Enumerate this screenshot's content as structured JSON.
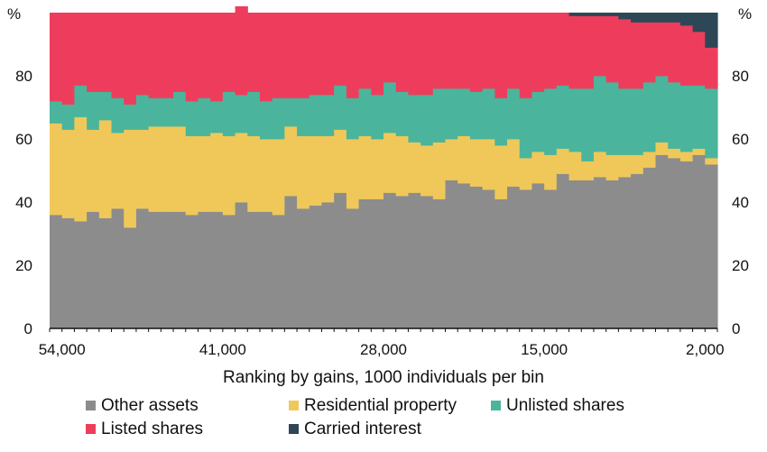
{
  "chart_data": {
    "type": "bar",
    "stacked": true,
    "xlabel": "Ranking by gains, 1000 individuals per bin",
    "ylabel_left": "%",
    "ylabel_right": "%",
    "ylim": [
      0,
      100
    ],
    "yticks": [
      0,
      20,
      40,
      60,
      80
    ],
    "xticks": [
      {
        "x": 54000,
        "label": "54,000"
      },
      {
        "x": 41000,
        "label": "41,000"
      },
      {
        "x": 28000,
        "label": "28,000"
      },
      {
        "x": 15000,
        "label": "15,000"
      },
      {
        "x": 2000,
        "label": "2,000"
      }
    ],
    "x_bin_start": 55000,
    "x_bin_step": -1000,
    "legend_position": "bottom",
    "series": [
      {
        "name": "Other assets",
        "color": "#8c8c8c",
        "values": [
          36,
          35,
          34,
          37,
          35,
          38,
          32,
          38,
          37,
          37,
          37,
          36,
          37,
          37,
          36,
          40,
          37,
          37,
          36,
          42,
          38,
          39,
          40,
          43,
          38,
          41,
          41,
          43,
          42,
          43,
          42,
          41,
          47,
          46,
          45,
          44,
          41,
          45,
          44,
          46,
          44,
          49,
          47,
          47,
          48,
          47,
          48,
          49,
          51,
          55,
          54,
          53,
          55,
          52
        ]
      },
      {
        "name": "Residential property",
        "color": "#f0c85a",
        "values": [
          29,
          28,
          33,
          26,
          31,
          24,
          31,
          25,
          27,
          27,
          27,
          25,
          24,
          25,
          25,
          22,
          24,
          23,
          24,
          22,
          23,
          22,
          21,
          20,
          22,
          20,
          19,
          19,
          19,
          16,
          16,
          18,
          13,
          15,
          15,
          16,
          17,
          15,
          10,
          10,
          11,
          8,
          9,
          6,
          8,
          8,
          7,
          6,
          5,
          4,
          3,
          3,
          2,
          2
        ]
      },
      {
        "name": "Unlisted shares",
        "color": "#4ab59c",
        "values": [
          7,
          8,
          10,
          12,
          9,
          11,
          8,
          11,
          9,
          9,
          11,
          11,
          12,
          10,
          14,
          12,
          14,
          12,
          13,
          9,
          12,
          13,
          13,
          14,
          13,
          15,
          14,
          16,
          14,
          15,
          16,
          17,
          16,
          15,
          15,
          16,
          15,
          16,
          19,
          19,
          21,
          20,
          20,
          23,
          24,
          23,
          21,
          21,
          22,
          21,
          21,
          21,
          20,
          22
        ]
      },
      {
        "name": "Listed shares",
        "color": "#ee3d5c",
        "values": [
          28,
          29,
          23,
          25,
          25,
          27,
          29,
          26,
          27,
          27,
          25,
          28,
          27,
          28,
          25,
          28,
          25,
          28,
          27,
          27,
          27,
          26,
          26,
          23,
          27,
          24,
          26,
          22,
          25,
          26,
          26,
          24,
          24,
          24,
          25,
          24,
          27,
          24,
          27,
          25,
          24,
          23,
          23,
          23,
          19,
          21,
          22,
          21,
          19,
          17,
          19,
          19,
          17,
          13
        ]
      },
      {
        "name": "Carried interest",
        "color": "#2d4756",
        "values": [
          0,
          0,
          0,
          0,
          0,
          0,
          0,
          0,
          0,
          0,
          0,
          0,
          0,
          0,
          0,
          0,
          0,
          0,
          0,
          0,
          0,
          0,
          0,
          0,
          0,
          0,
          0,
          0,
          0,
          0,
          0,
          0,
          0,
          0,
          0,
          0,
          0,
          0,
          0,
          0,
          0,
          0,
          1,
          1,
          1,
          1,
          2,
          3,
          3,
          3,
          3,
          4,
          6,
          11
        ]
      }
    ]
  }
}
